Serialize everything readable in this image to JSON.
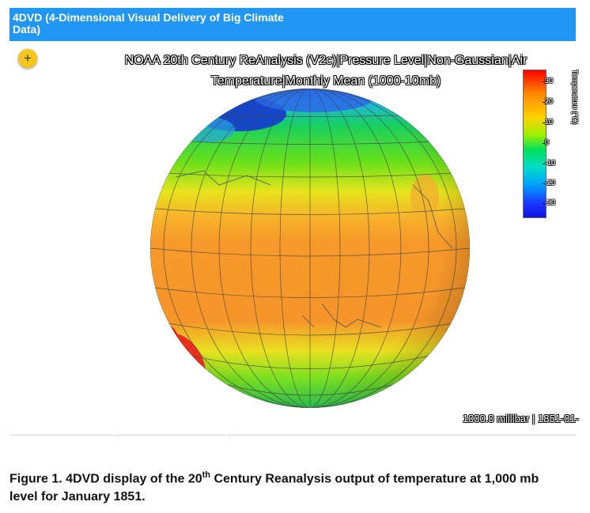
{
  "app_bar": {
    "title": "4DVD (4-Dimensional Visual Delivery of Big Climate Data)"
  },
  "viewer": {
    "expand_button_label": "+",
    "title_line1": "NOAA 20th Century ReAnalysis (V2c)|Pressure Level|Non-Gaussian|Air",
    "title_line2": "Temperature|Monthly Mean (1000-10mb)",
    "status": "1000.0 millibar | 1851-01-"
  },
  "colorbar": {
    "label": "Temperature (°C)",
    "ticks": [
      "30",
      "20",
      "10",
      "0",
      "-10",
      "-20",
      "-30"
    ],
    "colors": [
      "#ff0000",
      "#ff8a00",
      "#ffd200",
      "#9cf000",
      "#00e05a",
      "#00dcc8",
      "#00a0ff",
      "#1a3aff",
      "#1010e0"
    ]
  },
  "caption": {
    "prefix": "Figure 1. 4DVD display of the 20",
    "superscript": "th",
    "suffix": " Century Reanalysis output of temperature at 1,000 mb level for January 1851."
  }
}
